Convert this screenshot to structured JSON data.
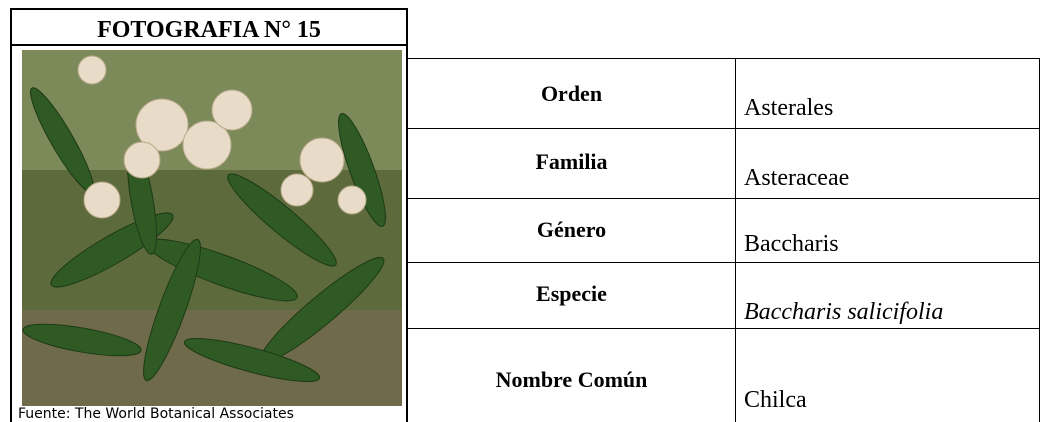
{
  "header": {
    "title": "FOTOGRAFIA N° 15"
  },
  "photo": {
    "caption": "Fuente: The World Botanical Associates"
  },
  "table": {
    "rows": [
      {
        "label": "Orden",
        "value": "Asterales"
      },
      {
        "label": "Familia",
        "value": "Asteraceae"
      },
      {
        "label": "Género",
        "value": "Baccharis"
      },
      {
        "label": "Especie",
        "value": "Baccharis salicifolia"
      },
      {
        "label": "Nombre Común",
        "value": "Chilca"
      }
    ]
  }
}
